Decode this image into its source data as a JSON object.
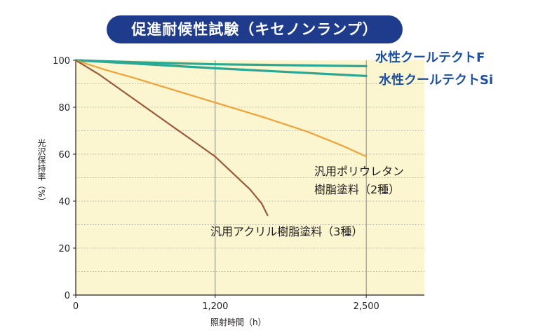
{
  "chart_data": {
    "type": "line",
    "title": "促進耐候性試験（キセノンランプ）",
    "xlabel": "照射時間（h）",
    "ylabel": "光沢保持率（%）",
    "xlim": [
      0,
      3000
    ],
    "ylim": [
      0,
      100
    ],
    "x_ticks": [
      0,
      1200,
      2500
    ],
    "x_tick_labels": [
      "0",
      "1,200",
      "2,500"
    ],
    "y_ticks": [
      0,
      20,
      40,
      60,
      80,
      100
    ],
    "y_tick_labels": [
      "0",
      "20",
      "40",
      "60",
      "80",
      "100"
    ],
    "grid": "dotted horizontal every 10, solid vertical at 1,200 and 2,500",
    "series": [
      {
        "name": "水性クールテクトF",
        "color": "#2aa894",
        "label_color": "#1d4fa0",
        "x": [
          0,
          500,
          1200,
          2500
        ],
        "y": [
          100,
          99.2,
          98.3,
          97.5
        ]
      },
      {
        "name": "水性クールテクトSi",
        "color": "#2aa894",
        "label_color": "#1d4fa0",
        "x": [
          0,
          500,
          1200,
          2500
        ],
        "y": [
          100,
          98.6,
          96.6,
          93.3
        ]
      },
      {
        "name": "汎用ポリウレタン樹脂塗料（2種）",
        "color": "#f0a238",
        "label_color": "#231f20",
        "x": [
          0,
          250,
          500,
          800,
          1200,
          1600,
          2000,
          2300,
          2500
        ],
        "y": [
          100,
          96,
          92.5,
          88,
          82,
          76,
          69.5,
          63.5,
          59
        ]
      },
      {
        "name": "汎用アクリル樹脂塗料（3種）",
        "color": "#9a5a3a",
        "label_color": "#231f20",
        "x": [
          0,
          200,
          400,
          600,
          800,
          1000,
          1200,
          1350,
          1500,
          1600,
          1650
        ],
        "y": [
          100,
          94,
          87,
          80,
          73,
          66,
          59,
          52,
          45,
          39,
          34
        ]
      }
    ]
  }
}
